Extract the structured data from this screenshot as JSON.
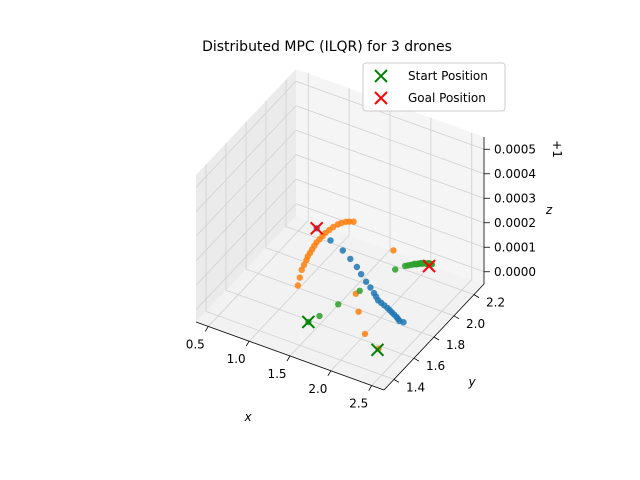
{
  "chart_data": {
    "type": "scatter",
    "projection": "3d",
    "title": "Distributed MPC (ILQR) for 3 drones",
    "xlabel": "x",
    "ylabel": "y",
    "zlabel": "z",
    "z_offset_label": "+1",
    "xlim": [
      0.35,
      2.65
    ],
    "ylim": [
      1.3,
      2.3
    ],
    "zlim": [
      -5e-05,
      0.00055
    ],
    "x_ticks": [
      "0.5",
      "1.0",
      "1.5",
      "2.0",
      "2.5"
    ],
    "y_ticks": [
      "1.4",
      "1.6",
      "1.8",
      "2.0",
      "2.2"
    ],
    "z_ticks": [
      "0.0000",
      "0.0001",
      "0.0002",
      "0.0003",
      "0.0004",
      "0.0005"
    ],
    "x_tick_values": [
      0.5,
      1.0,
      1.5,
      2.0,
      2.5
    ],
    "y_tick_values": [
      1.4,
      1.6,
      1.8,
      2.0,
      2.2
    ],
    "z_tick_values": [
      0.0,
      0.0001,
      0.0002,
      0.0003,
      0.0004,
      0.0005
    ],
    "grid": true,
    "legend_position": "top-right",
    "colors": {
      "blue": "#1f77b4",
      "orange": "#ff7f0e",
      "green": "#2ca02c",
      "start": "#008000",
      "goal": "#ff0000",
      "pane": "#f2f2f2",
      "grid": "#d0d0d0"
    },
    "series": [
      {
        "color": "#1f77b4",
        "x": [
          2.35,
          2.3,
          2.27,
          2.24,
          2.2,
          2.16,
          2.12,
          2.08,
          2.03,
          1.98,
          1.93,
          1.88,
          1.83,
          1.75,
          1.66,
          1.55,
          1.45,
          1.32,
          1.18,
          0.98,
          0.75
        ],
        "y": [
          1.74,
          1.74,
          1.75,
          1.76,
          1.77,
          1.78,
          1.79,
          1.8,
          1.81,
          1.82,
          1.83,
          1.85,
          1.87,
          1.9,
          1.93,
          1.97,
          2.01,
          2.05,
          2.09,
          2.13,
          2.18
        ],
        "z": [
          0.0,
          0.0,
          0.0,
          0.0,
          0.0,
          0.0,
          0.0,
          0.0,
          0.0,
          0.0,
          0.0,
          0.0,
          0.0,
          0.0,
          0.0,
          0.0,
          0.0,
          0.0,
          0.0,
          0.0,
          0.0
        ]
      },
      {
        "color": "#ff7f0e",
        "x": [
          2.35,
          2.1,
          1.85,
          1.67,
          1.64,
          1.07,
          1.02,
          0.97,
          0.95,
          0.93,
          0.91,
          0.9,
          0.89,
          0.88,
          0.87,
          0.87,
          0.87,
          0.87,
          0.88,
          0.89,
          0.91,
          0.93,
          0.96,
          0.99,
          1.03
        ],
        "y": [
          1.49,
          1.56,
          1.7,
          1.82,
          2.22,
          1.73,
          1.79,
          1.85,
          1.89,
          1.93,
          1.96,
          1.99,
          2.02,
          2.05,
          2.08,
          2.11,
          2.14,
          2.17,
          2.2,
          2.23,
          2.26,
          2.28,
          2.3,
          2.31,
          2.32
        ],
        "z": [
          0.0,
          0.0,
          0.0,
          0.0,
          0.0,
          0.0,
          0.0,
          0.0,
          0.0,
          0.0,
          0.0,
          0.0,
          0.0,
          0.0,
          0.0,
          0.0,
          0.0,
          0.0,
          0.0,
          0.0,
          0.0,
          0.0,
          0.0,
          0.0,
          0.0
        ]
      },
      {
        "color": "#2ca02c",
        "x": [
          1.48,
          1.53,
          1.6,
          1.68,
          1.82,
          1.88,
          1.9,
          1.92,
          1.94,
          1.95,
          1.97,
          1.98,
          1.99,
          2.0,
          2.01,
          2.02,
          2.03,
          2.04,
          2.05,
          2.06,
          2.07,
          2.08,
          2.09,
          2.1,
          2.11
        ],
        "y": [
          1.5,
          1.57,
          1.7,
          1.85,
          2.09,
          2.14,
          2.15,
          2.16,
          2.17,
          2.18,
          2.18,
          2.19,
          2.19,
          2.2,
          2.2,
          2.2,
          2.21,
          2.21,
          2.21,
          2.21,
          2.22,
          2.22,
          2.22,
          2.22,
          2.22
        ],
        "z": [
          0.0,
          0.0,
          0.0,
          0.0,
          0.0,
          0.0,
          0.0,
          0.0,
          0.0,
          0.0,
          0.0,
          0.0,
          0.0,
          0.0,
          0.0,
          0.0,
          0.0,
          0.0,
          0.0,
          0.0,
          0.0,
          0.0,
          0.0,
          0.0,
          0.0
        ]
      }
    ],
    "markers": [
      {
        "legend": "Start Position",
        "color": "#008000",
        "points": [
          {
            "x": 1.48,
            "y": 1.5,
            "z": 0.0
          },
          {
            "x": 2.35,
            "y": 1.48,
            "z": 0.0
          }
        ]
      },
      {
        "legend": "Goal Position",
        "color": "#ff0000",
        "points": [
          {
            "x": 0.75,
            "y": 2.18,
            "z": 0.0
          },
          {
            "x": 2.1,
            "y": 2.2,
            "z": 0.0
          }
        ]
      }
    ],
    "legend": [
      "Start Position",
      "Goal Position"
    ]
  }
}
